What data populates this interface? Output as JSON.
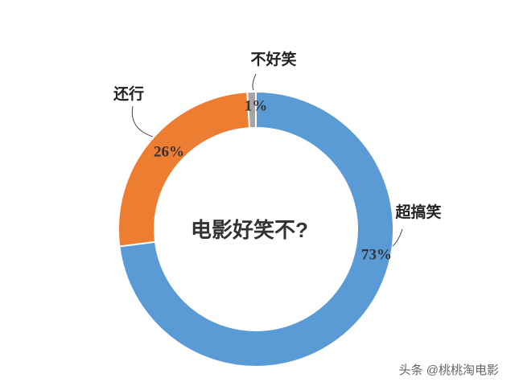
{
  "chart_data": {
    "type": "donut",
    "center_label": "电影好笑不?",
    "categories": [
      "超搞笑",
      "还行",
      "不好笑"
    ],
    "values": [
      73,
      26,
      1
    ],
    "value_labels": [
      "73%",
      "26%",
      "1%"
    ],
    "colors": [
      "#5b9bd5",
      "#ed7d31",
      "#a5a5a5"
    ]
  },
  "watermark": "头条 @桃桃淘电影"
}
